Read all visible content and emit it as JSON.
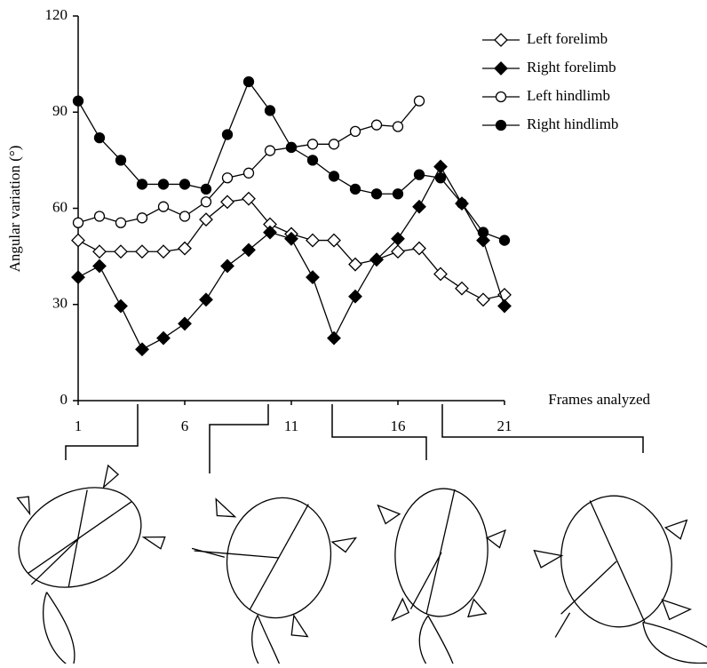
{
  "chart_data": {
    "type": "line",
    "y_label": "Angular variation (°)",
    "x_label": "Frames analyzed",
    "x": [
      1,
      2,
      3,
      4,
      5,
      6,
      7,
      8,
      9,
      10,
      11,
      12,
      13,
      14,
      15,
      16,
      17,
      18,
      19,
      20,
      21
    ],
    "xlim": [
      1,
      21
    ],
    "xticks": [
      1,
      6,
      11,
      16,
      21
    ],
    "ylim": [
      0,
      120
    ],
    "yticks": [
      0,
      30,
      60,
      90,
      120
    ],
    "grid": false,
    "legend": "top-right",
    "series": [
      {
        "name": "Left forelimb",
        "color": "#000000",
        "marker": "diamond",
        "filled": false,
        "values": [
          50,
          46.5,
          46.5,
          46.5,
          46.5,
          47.5,
          56.5,
          62,
          63,
          55,
          52,
          50,
          50,
          42.5,
          44,
          46.5,
          47.5,
          39.5,
          35,
          31.5,
          33
        ]
      },
      {
        "name": "Right forelimb",
        "color": "#000000",
        "marker": "diamond",
        "filled": true,
        "values": [
          38.5,
          42,
          29.5,
          16,
          19.5,
          24,
          31.5,
          42,
          47,
          52.5,
          50.5,
          38.5,
          19.5,
          32.5,
          44,
          50.5,
          60.5,
          73,
          61.5,
          50,
          29.5
        ]
      },
      {
        "name": "Left hindlimb",
        "color": "#000000",
        "marker": "circle",
        "filled": false,
        "values": [
          55.5,
          57.5,
          55.5,
          57,
          60.5,
          57.5,
          62,
          69.5,
          71,
          78,
          79,
          80,
          80,
          84,
          86,
          85.5,
          93.5,
          null,
          null,
          null,
          null
        ]
      },
      {
        "name": "Right hindlimb",
        "color": "#000000",
        "marker": "circle",
        "filled": true,
        "values": [
          93.5,
          82,
          75,
          67.5,
          67.5,
          67.5,
          66,
          83,
          99.5,
          90.5,
          79,
          75,
          70,
          66,
          64.5,
          64.5,
          70.5,
          69.5,
          61.5,
          52.5,
          50
        ]
      }
    ]
  }
}
